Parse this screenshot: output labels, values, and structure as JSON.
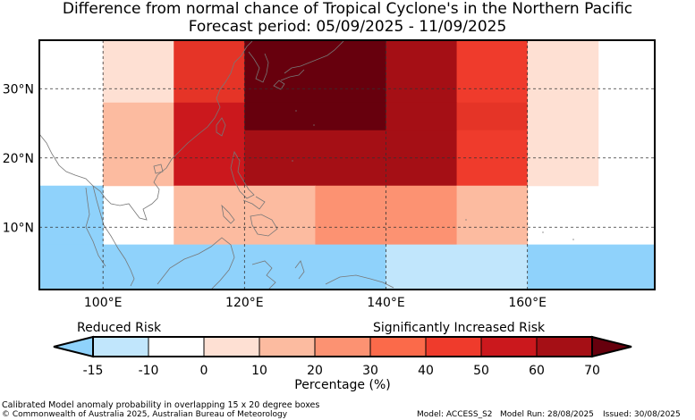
{
  "title": {
    "line1": "Difference from normal chance of Tropical Cyclone's in the Northern Pacific",
    "line2": "Forecast period: 05/09/2025 - 11/09/2025"
  },
  "map": {
    "lon_range": [
      91,
      178
    ],
    "lat_range": [
      1,
      37
    ],
    "lon_ticks": [
      {
        "value": 100,
        "label": "100°E"
      },
      {
        "value": 120,
        "label": "120°E"
      },
      {
        "value": 140,
        "label": "140°E"
      },
      {
        "value": 160,
        "label": "160°E"
      }
    ],
    "lat_ticks": [
      {
        "value": 30,
        "label": "30°N"
      },
      {
        "value": 20,
        "label": "20°N"
      },
      {
        "value": 10,
        "label": "10°N"
      }
    ],
    "grid": true,
    "cells": [
      {
        "lon": [
          100,
          110
        ],
        "lat": [
          28,
          37
        ],
        "category": 1
      },
      {
        "lon": [
          110,
          120
        ],
        "lat": [
          28,
          37
        ],
        "category": 6
      },
      {
        "lon": [
          120,
          140
        ],
        "lat": [
          28,
          37
        ],
        "category": 9
      },
      {
        "lon": [
          140,
          150
        ],
        "lat": [
          28,
          37
        ],
        "category": 8
      },
      {
        "lon": [
          150,
          160
        ],
        "lat": [
          28,
          37
        ],
        "category": 5
      },
      {
        "lon": [
          160,
          170
        ],
        "lat": [
          28,
          37
        ],
        "category": 1
      },
      {
        "lon": [
          100,
          110
        ],
        "lat": [
          24,
          28
        ],
        "category": 2
      },
      {
        "lon": [
          110,
          120
        ],
        "lat": [
          24,
          28
        ],
        "category": 7
      },
      {
        "lon": [
          120,
          140
        ],
        "lat": [
          24,
          28
        ],
        "category": 9
      },
      {
        "lon": [
          140,
          150
        ],
        "lat": [
          24,
          28
        ],
        "category": 8
      },
      {
        "lon": [
          150,
          160
        ],
        "lat": [
          24,
          28
        ],
        "category": 6
      },
      {
        "lon": [
          160,
          170
        ],
        "lat": [
          24,
          28
        ],
        "category": 1
      },
      {
        "lon": [
          100,
          110
        ],
        "lat": [
          20,
          24
        ],
        "category": 2
      },
      {
        "lon": [
          110,
          120
        ],
        "lat": [
          20,
          24
        ],
        "category": 7
      },
      {
        "lon": [
          120,
          140
        ],
        "lat": [
          20,
          24
        ],
        "category": 8
      },
      {
        "lon": [
          140,
          150
        ],
        "lat": [
          20,
          24
        ],
        "category": 8
      },
      {
        "lon": [
          150,
          160
        ],
        "lat": [
          20,
          24
        ],
        "category": 5
      },
      {
        "lon": [
          160,
          170
        ],
        "lat": [
          20,
          24
        ],
        "category": 1
      },
      {
        "lon": [
          100,
          110
        ],
        "lat": [
          16,
          20
        ],
        "category": 2
      },
      {
        "lon": [
          110,
          120
        ],
        "lat": [
          16,
          20
        ],
        "category": 7
      },
      {
        "lon": [
          120,
          140
        ],
        "lat": [
          16,
          20
        ],
        "category": 8
      },
      {
        "lon": [
          140,
          150
        ],
        "lat": [
          16,
          20
        ],
        "category": 8
      },
      {
        "lon": [
          150,
          160
        ],
        "lat": [
          16,
          20
        ],
        "category": 5
      },
      {
        "lon": [
          160,
          170
        ],
        "lat": [
          16,
          20
        ],
        "category": 1
      },
      {
        "lon": [
          91,
          100
        ],
        "lat": [
          7.5,
          16
        ],
        "category": -1
      },
      {
        "lon": [
          110,
          130
        ],
        "lat": [
          7.5,
          16
        ],
        "category": 2
      },
      {
        "lon": [
          130,
          150
        ],
        "lat": [
          7.5,
          16
        ],
        "category": 3
      },
      {
        "lon": [
          150,
          160
        ],
        "lat": [
          7.5,
          16
        ],
        "category": 2
      },
      {
        "lon": [
          91,
          140
        ],
        "lat": [
          1,
          7.5
        ],
        "category": -1
      },
      {
        "lon": [
          140,
          160
        ],
        "lat": [
          1,
          7.5
        ],
        "category": -2
      },
      {
        "lon": [
          160,
          178
        ],
        "lat": [
          1,
          7.5
        ],
        "category": -1
      }
    ]
  },
  "legend": {
    "left_label": "Reduced Risk",
    "right_label": "Significantly Increased Risk",
    "axis_title": "Percentage (%)",
    "tick_labels": [
      "-15",
      "-10",
      "0",
      "10",
      "20",
      "30",
      "40",
      "50",
      "60",
      "70"
    ],
    "colors": {
      "-1": "#8fd2fb",
      "-2": "#c1e6fc",
      "0": "#ffffff",
      "1": "#fee0d3",
      "2": "#fcbba0",
      "3": "#fc9272",
      "4": "#fb6a4a",
      "5": "#ef3b2c",
      "6": "#e53427",
      "7": "#cb181d",
      "8": "#a50f15",
      "9": "#67000d"
    }
  },
  "footer": {
    "description": "Calibrated Model anomaly probability in overlapping 15 x 20 degree boxes",
    "copyright": "© Commonwealth of Australia 2025, Australian Bureau of Meteorology",
    "model": "Model: ACCESS_S2",
    "model_run": "Model Run: 28/08/2025",
    "issued": "Issued: 30/08/2025"
  }
}
